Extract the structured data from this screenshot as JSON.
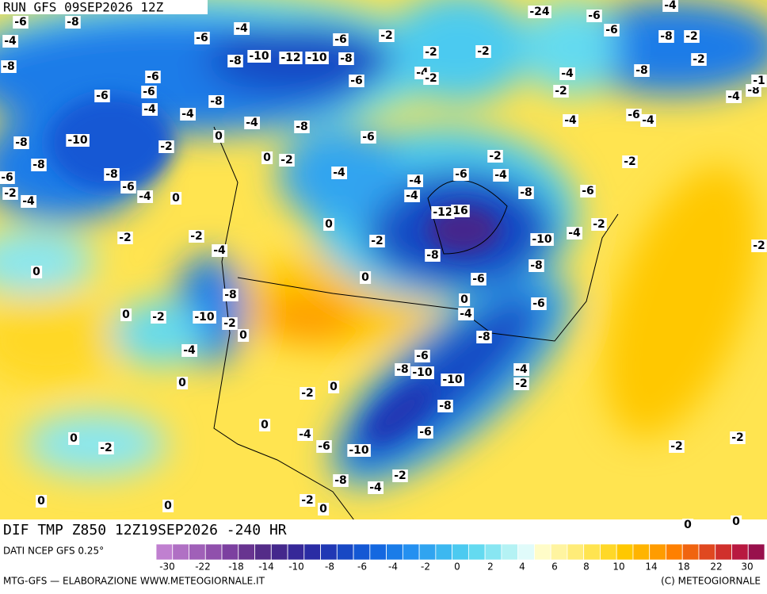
{
  "header": {
    "run": "RUN GFS 09SEP2026 12Z",
    "field": "DIF TMP Z850 12Z19SEP2026 -240 HR"
  },
  "footer": {
    "source": "DATI NCEP GFS 0.25°",
    "credits": "MTG-GFS — ELABORAZIONE WWW.METEOGIORNALE.IT",
    "copyright": "(C) METEOGIORNALE"
  },
  "colorbar": {
    "colors": [
      "#c080d0",
      "#b070c4",
      "#a060b8",
      "#9050ac",
      "#7c40a0",
      "#683490",
      "#542c88",
      "#44288c",
      "#362898",
      "#2a2ca4",
      "#2038b4",
      "#1848c4",
      "#1458d4",
      "#1468e0",
      "#1a7ce8",
      "#2490f0",
      "#30a4f0",
      "#3cb8f0",
      "#4ccaf0",
      "#64daf0",
      "#88e6f2",
      "#b4f2f4",
      "#e0fbfa",
      "#fffcc8",
      "#fff4a0",
      "#ffec78",
      "#ffe450",
      "#ffd828",
      "#ffc800",
      "#ffb400",
      "#ff9c00",
      "#ff8000",
      "#f06410",
      "#e04820",
      "#d0302c",
      "#b81840",
      "#98104c"
    ],
    "ticks": [
      -30,
      -22,
      -18,
      -14,
      -10,
      -8,
      -6,
      -4,
      -2,
      0,
      2,
      4,
      6,
      8,
      10,
      14,
      18,
      22,
      30
    ]
  },
  "contour_labels": [
    -6,
    -8,
    -4,
    -8,
    -6,
    -4,
    -8,
    -10,
    -12,
    -10,
    -8,
    -6,
    -2,
    -2,
    -2,
    -24,
    -6,
    -6,
    -8,
    -2,
    -2,
    -8,
    -4,
    -2,
    -4,
    -6,
    -4,
    -4,
    -8,
    -1,
    -4,
    -6,
    -6,
    -6,
    -4,
    -4,
    -8,
    -4,
    -8,
    -6,
    -4,
    -2,
    -6,
    -2,
    0,
    -8,
    -10,
    -8,
    -8,
    -6,
    -6,
    -4,
    0,
    -4,
    -2,
    0,
    -2,
    -4,
    -2,
    -2,
    -4,
    -4,
    -6,
    -4,
    -8,
    -6,
    -12,
    16,
    -4,
    -2,
    0,
    -2,
    -2,
    -2,
    -4,
    -10,
    -8,
    -8,
    -6,
    0,
    0,
    -2,
    -8,
    0,
    -4,
    -6,
    0,
    -2,
    -10,
    -2,
    0,
    -4,
    -8,
    -6,
    -8,
    -10,
    -10,
    -4,
    -2,
    0,
    0,
    -2,
    -8,
    0,
    -6,
    -4,
    -6,
    -10,
    -2,
    -2,
    0,
    -2,
    -8,
    -4,
    -2,
    0,
    0,
    -2,
    0,
    0,
    0
  ]
}
